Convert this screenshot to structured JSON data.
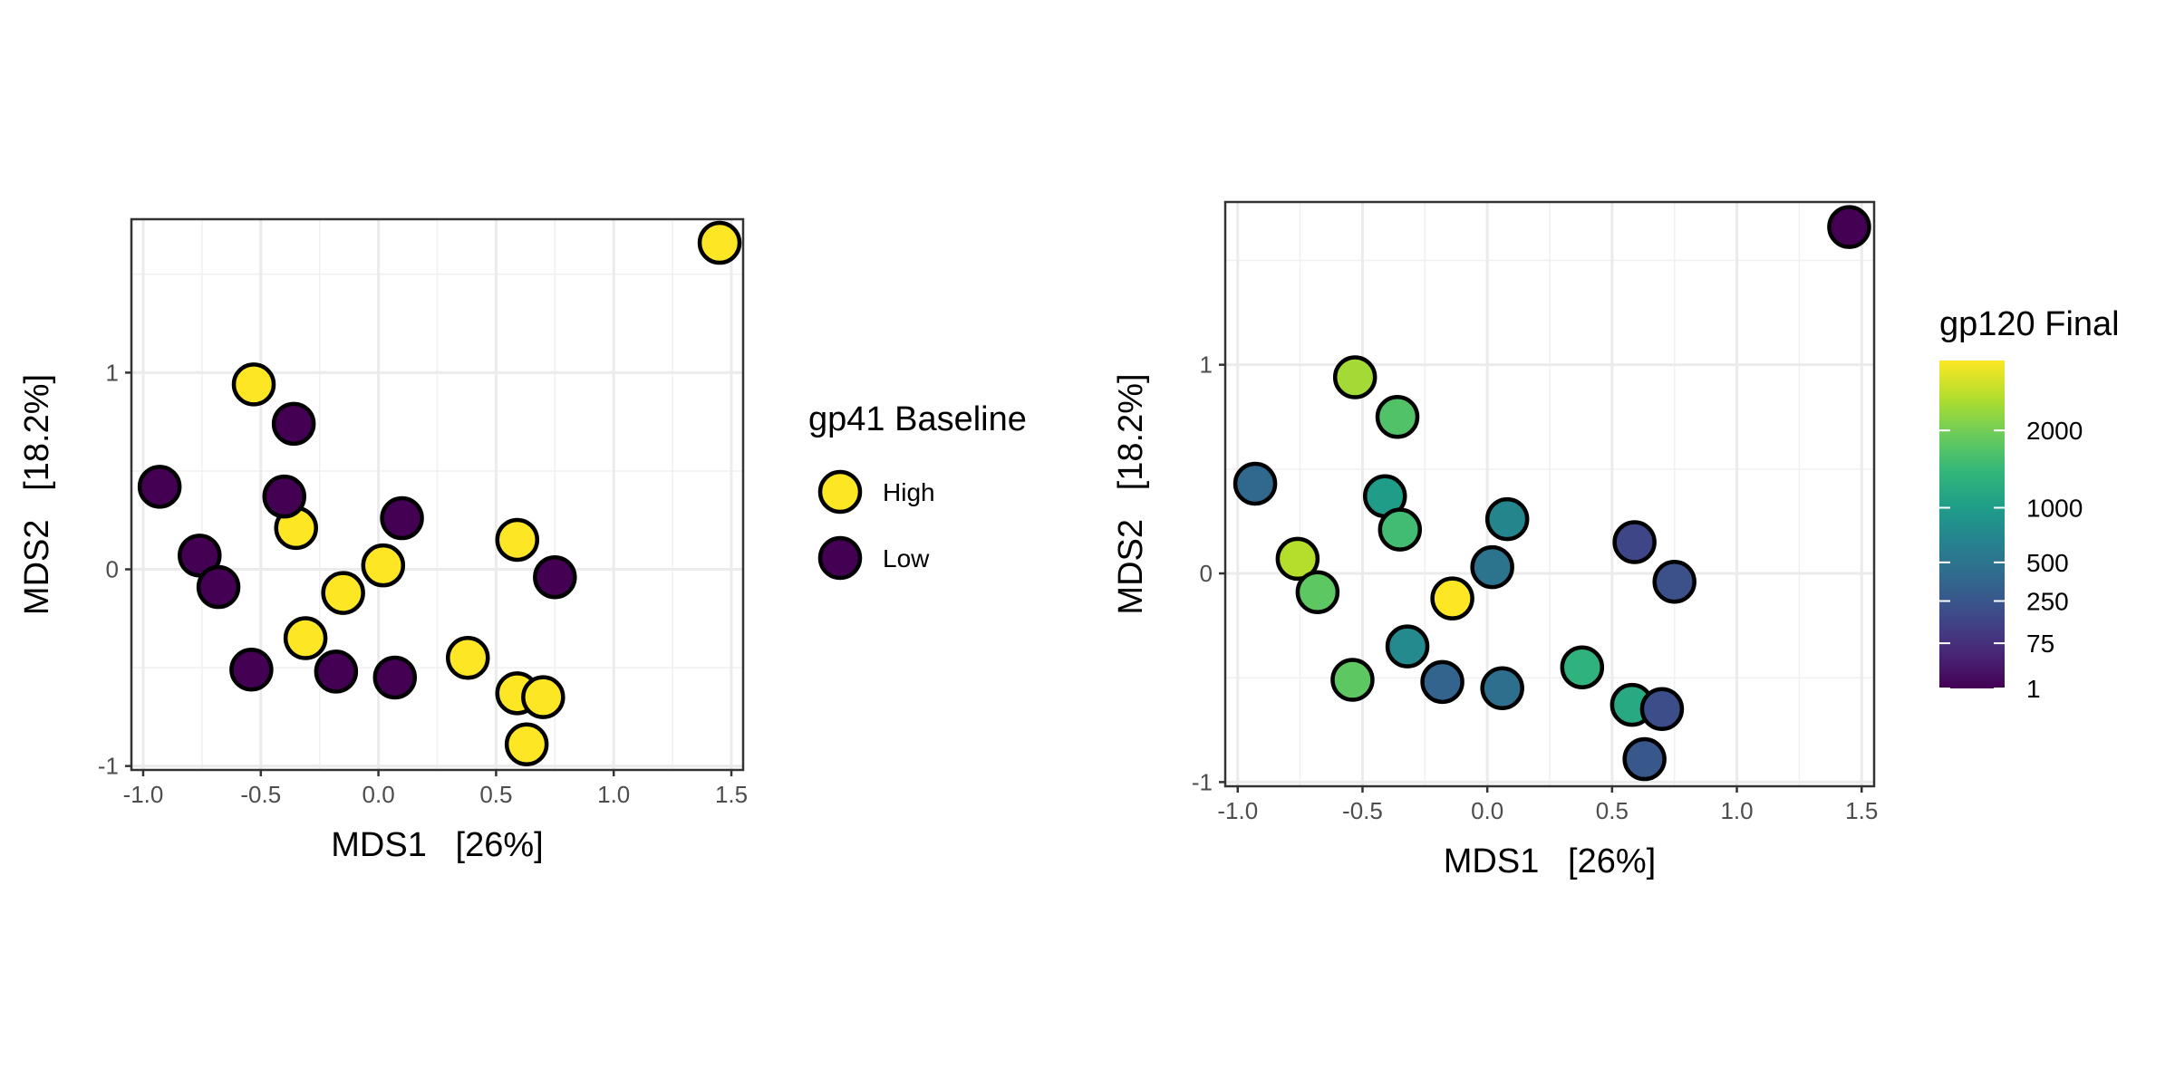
{
  "chart_data": [
    {
      "type": "scatter",
      "title": "",
      "xlabel": "MDS1   [26%]",
      "ylabel": "MDS2   [18.2%]",
      "xlim": [
        -1.05,
        1.55
      ],
      "ylim": [
        -1.02,
        1.78
      ],
      "x_ticks": [
        -1.0,
        -0.5,
        0.0,
        0.5,
        1.0,
        1.5
      ],
      "x_tick_labels": [
        "-1.0",
        "-0.5",
        "0.0",
        "0.5",
        "1.0",
        "1.5"
      ],
      "y_ticks": [
        -1,
        0,
        1
      ],
      "y_tick_labels": [
        "-1",
        "0",
        "1"
      ],
      "grid": true,
      "legend": {
        "title": "gp41 Baseline",
        "placement": "right",
        "entries": [
          {
            "label": "High",
            "color": "#FDE725"
          },
          {
            "label": "Low",
            "color": "#440154"
          }
        ]
      },
      "series": [
        {
          "name": "High",
          "color": "#FDE725",
          "points": [
            {
              "x": 1.45,
              "y": 1.66
            },
            {
              "x": -0.53,
              "y": 0.94
            },
            {
              "x": -0.35,
              "y": 0.21
            },
            {
              "x": 0.02,
              "y": 0.02
            },
            {
              "x": -0.15,
              "y": -0.12
            },
            {
              "x": -0.31,
              "y": -0.35
            },
            {
              "x": 0.38,
              "y": -0.45
            },
            {
              "x": 0.59,
              "y": 0.15
            },
            {
              "x": 0.59,
              "y": -0.63
            },
            {
              "x": 0.7,
              "y": -0.65
            },
            {
              "x": 0.63,
              "y": -0.89
            }
          ]
        },
        {
          "name": "Low",
          "color": "#440154",
          "points": [
            {
              "x": -0.93,
              "y": 0.42
            },
            {
              "x": -0.36,
              "y": 0.74
            },
            {
              "x": -0.4,
              "y": 0.37
            },
            {
              "x": 0.1,
              "y": 0.26
            },
            {
              "x": -0.76,
              "y": 0.07
            },
            {
              "x": -0.68,
              "y": -0.09
            },
            {
              "x": 0.75,
              "y": -0.04
            },
            {
              "x": -0.54,
              "y": -0.51
            },
            {
              "x": -0.18,
              "y": -0.52
            },
            {
              "x": 0.07,
              "y": -0.55
            }
          ]
        }
      ]
    },
    {
      "type": "scatter",
      "title": "",
      "xlabel": "MDS1   [26%]",
      "ylabel": "MDS2   [18.2%]",
      "xlim": [
        -1.05,
        1.55
      ],
      "ylim": [
        -1.02,
        1.78
      ],
      "x_ticks": [
        -1.0,
        -0.5,
        0.0,
        0.5,
        1.0,
        1.5
      ],
      "x_tick_labels": [
        "-1.0",
        "-0.5",
        "0.0",
        "0.5",
        "1.0",
        "1.5"
      ],
      "y_ticks": [
        -1,
        0,
        1
      ],
      "y_tick_labels": [
        "-1",
        "0",
        "1"
      ],
      "grid": true,
      "color_scale": {
        "title": "gp120 Final",
        "placement": "right",
        "scale": "sqrt",
        "min": 1,
        "max": 3200,
        "ticks": [
          1,
          75,
          250,
          500,
          1000,
          2000
        ],
        "tick_labels": [
          "1",
          "75",
          "250",
          "500",
          "1000",
          "2000"
        ]
      },
      "points": [
        {
          "x": 1.45,
          "y": 1.66,
          "value": 1
        },
        {
          "x": -0.53,
          "y": 0.94,
          "value": 2400
        },
        {
          "x": -0.36,
          "y": 0.75,
          "value": 1700
        },
        {
          "x": -0.93,
          "y": 0.43,
          "value": 380
        },
        {
          "x": -0.41,
          "y": 0.37,
          "value": 1000
        },
        {
          "x": -0.35,
          "y": 0.21,
          "value": 1550
        },
        {
          "x": 0.08,
          "y": 0.26,
          "value": 700
        },
        {
          "x": 0.59,
          "y": 0.15,
          "value": 160
        },
        {
          "x": 0.75,
          "y": -0.04,
          "value": 210
        },
        {
          "x": 0.02,
          "y": 0.03,
          "value": 500
        },
        {
          "x": -0.76,
          "y": 0.07,
          "value": 2550
        },
        {
          "x": -0.68,
          "y": -0.09,
          "value": 1800
        },
        {
          "x": -0.14,
          "y": -0.12,
          "value": 3200
        },
        {
          "x": -0.32,
          "y": -0.35,
          "value": 750
        },
        {
          "x": -0.54,
          "y": -0.51,
          "value": 1800
        },
        {
          "x": -0.18,
          "y": -0.52,
          "value": 350
        },
        {
          "x": 0.06,
          "y": -0.55,
          "value": 450
        },
        {
          "x": 0.38,
          "y": -0.45,
          "value": 1350
        },
        {
          "x": 0.58,
          "y": -0.63,
          "value": 1200
        },
        {
          "x": 0.7,
          "y": -0.65,
          "value": 200
        },
        {
          "x": 0.63,
          "y": -0.89,
          "value": 260
        }
      ]
    }
  ]
}
